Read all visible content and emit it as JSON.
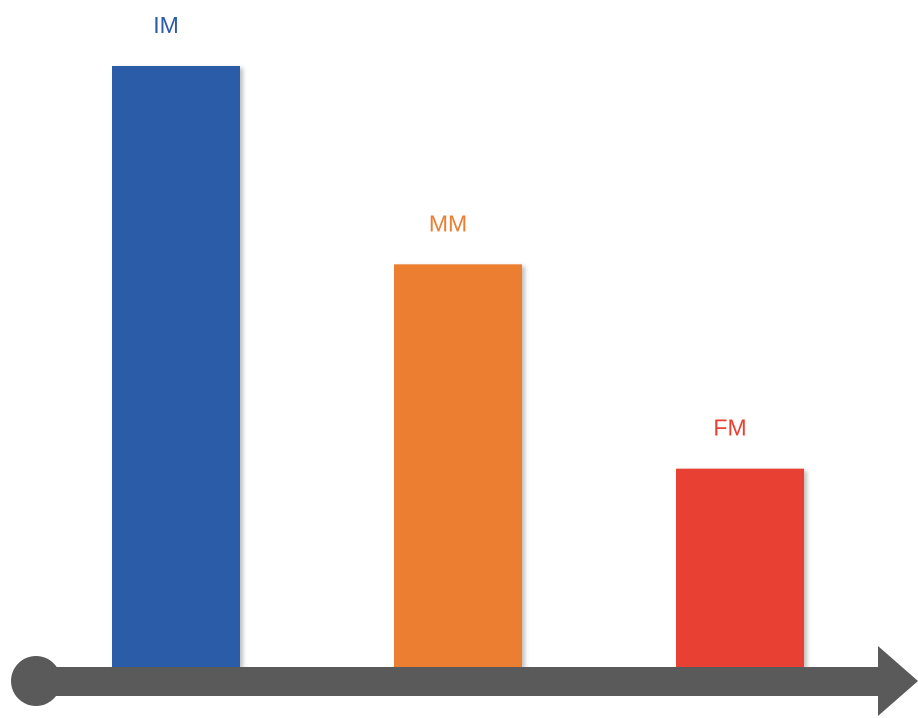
{
  "chart_data": {
    "type": "bar",
    "categories": [
      "IM",
      "MM",
      "FM"
    ],
    "values": [
      100,
      67,
      33
    ],
    "colors": [
      "#2B5BA8",
      "#EC7E31",
      "#E84133"
    ],
    "axis": {
      "color": "#5A5A5A",
      "start_marker": "circle",
      "end_marker": "arrow"
    },
    "title": "",
    "xlabel": "",
    "ylabel": "",
    "ylim": [
      0,
      100
    ],
    "grid": false,
    "legend": "none"
  }
}
